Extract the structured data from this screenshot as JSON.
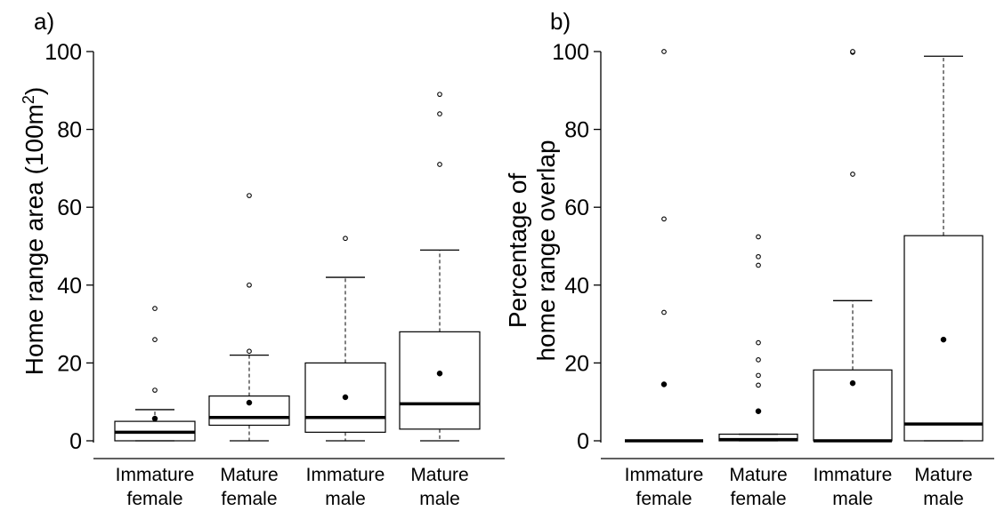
{
  "chart_data": [
    {
      "type": "box",
      "panel_label": "a)",
      "ylabel_main": "Home range area (100m",
      "ylabel_sup": "2",
      "ylabel_close": ")",
      "ylim": [
        0,
        100
      ],
      "yticks": [
        0,
        20,
        40,
        60,
        80,
        100
      ],
      "grid": false,
      "categories": [
        {
          "line1": "Immature",
          "line2": "female"
        },
        {
          "line1": "Mature",
          "line2": "female"
        },
        {
          "line1": "Immature",
          "line2": "male"
        },
        {
          "line1": "Mature",
          "line2": "male"
        }
      ],
      "boxes": [
        {
          "whisker_low": 0,
          "q1": 0,
          "median": 2.2,
          "q3": 5,
          "whisker_high": 8,
          "mean": 5.7,
          "outliers": [
            13,
            26,
            34
          ]
        },
        {
          "whisker_low": 0,
          "q1": 4,
          "median": 6,
          "q3": 11.5,
          "whisker_high": 22,
          "mean": 9.8,
          "outliers": [
            23,
            40,
            63
          ]
        },
        {
          "whisker_low": 0,
          "q1": 2.2,
          "median": 6,
          "q3": 20,
          "whisker_high": 42,
          "mean": 11.2,
          "outliers": [
            52
          ]
        },
        {
          "whisker_low": 0,
          "q1": 3,
          "median": 9.5,
          "q3": 28,
          "whisker_high": 49,
          "mean": 17.3,
          "outliers": [
            71,
            84,
            89
          ]
        }
      ]
    },
    {
      "type": "box",
      "panel_label": "b)",
      "ylabel_line1": "Percentage of",
      "ylabel_line2": "home range overlap",
      "ylim": [
        0,
        100
      ],
      "yticks": [
        0,
        20,
        40,
        60,
        80,
        100
      ],
      "grid": false,
      "categories": [
        {
          "line1": "Immature",
          "line2": "female"
        },
        {
          "line1": "Mature",
          "line2": "female"
        },
        {
          "line1": "Immature",
          "line2": "male"
        },
        {
          "line1": "Mature",
          "line2": "male"
        }
      ],
      "boxes": [
        {
          "whisker_low": 0,
          "q1": 0,
          "median": 0,
          "q3": 0,
          "whisker_high": 0,
          "mean": 14.5,
          "outliers": [
            14.5,
            33,
            57,
            100
          ]
        },
        {
          "whisker_low": 0,
          "q1": 0,
          "median": 0.3,
          "q3": 1.7,
          "whisker_high": 1.7,
          "mean": 7.6,
          "outliers": [
            7.6,
            14.3,
            16.8,
            20.8,
            25.2,
            45.1,
            47.3,
            52.4
          ]
        },
        {
          "whisker_low": 0,
          "q1": 0,
          "median": 0,
          "q3": 18.2,
          "whisker_high": 36,
          "mean": 14.8,
          "outliers": [
            68.5,
            99.8,
            100
          ]
        },
        {
          "whisker_low": 0,
          "q1": 0,
          "median": 4.3,
          "q3": 52.7,
          "whisker_high": 98.8,
          "mean": 26,
          "outliers": []
        }
      ]
    }
  ]
}
